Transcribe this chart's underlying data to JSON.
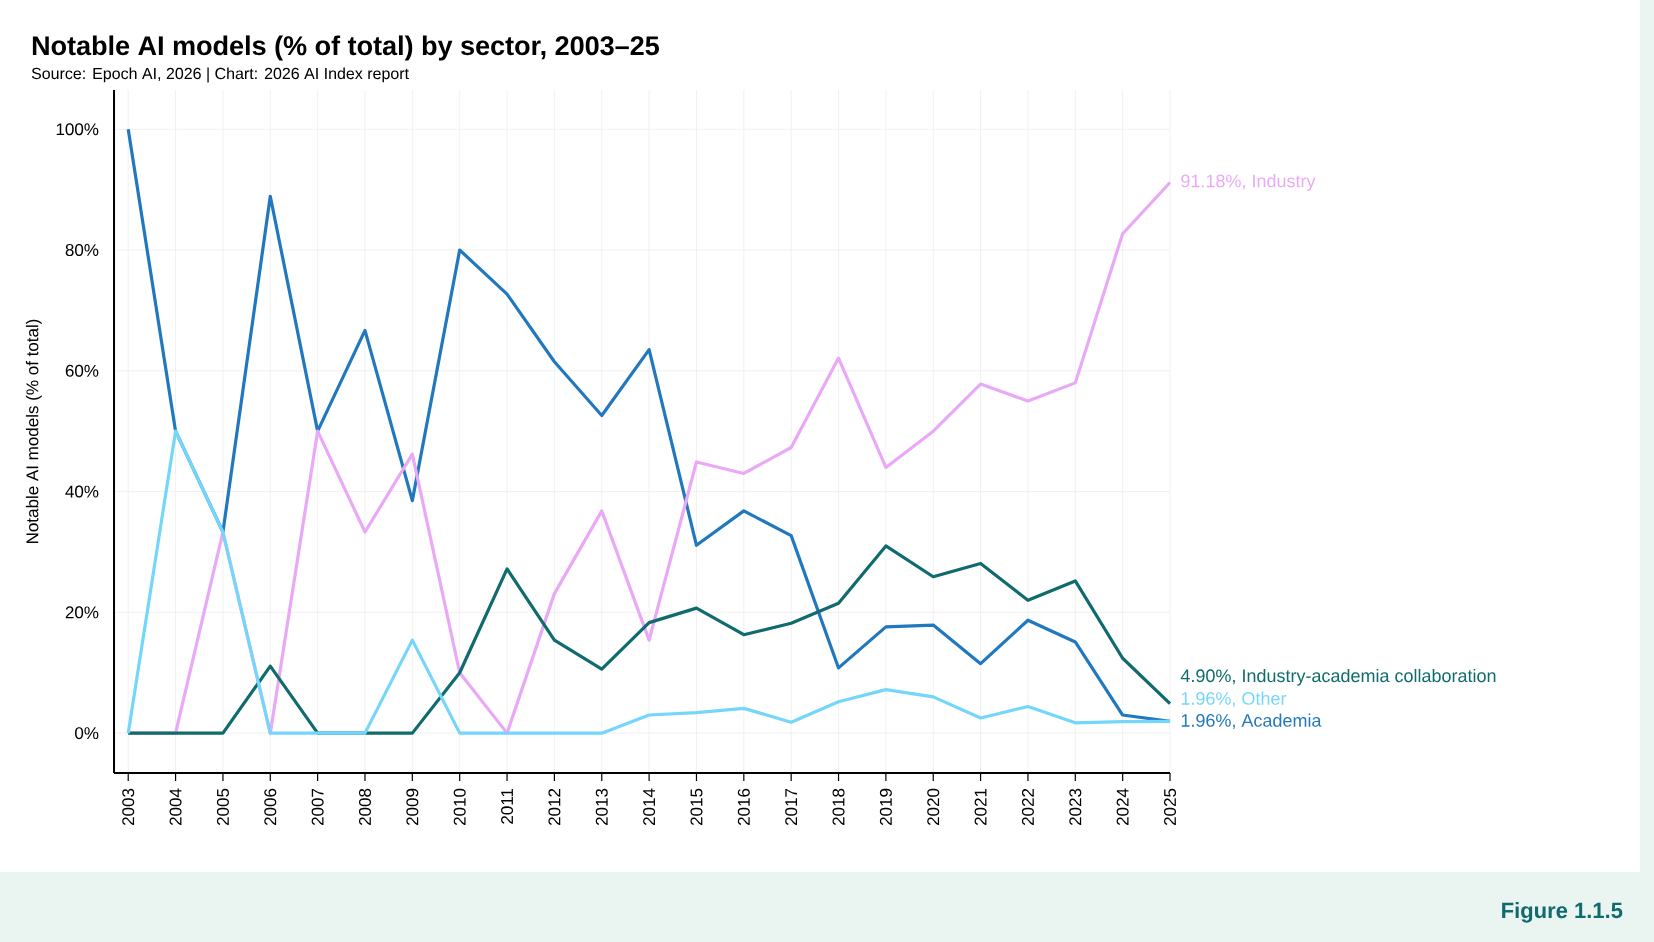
{
  "chart_data": {
    "type": "line",
    "title": "Notable AI models (% of total) by sector, 2003–25",
    "subtitle": "Source: Epoch AI, 2026 | Chart: 2026 AI Index report",
    "ylabel": "Notable AI models (% of total)",
    "x": [
      2003,
      2004,
      2005,
      2006,
      2007,
      2008,
      2009,
      2010,
      2011,
      2012,
      2013,
      2014,
      2015,
      2016,
      2017,
      2018,
      2019,
      2020,
      2021,
      2022,
      2023,
      2024,
      2025
    ],
    "series": [
      {
        "name": "Academia",
        "color": "#2178be",
        "values": [
          100,
          50,
          33.3,
          88.9,
          50,
          66.7,
          38.5,
          80,
          72.7,
          61.5,
          52.6,
          63.5,
          31.1,
          36.8,
          32.7,
          10.8,
          17.6,
          17.9,
          11.5,
          18.7,
          15.1,
          3.0,
          1.96
        ],
        "value_labels": [
          null,
          null,
          null,
          null,
          null,
          null,
          null,
          null,
          null,
          null,
          null,
          null,
          null,
          null,
          null,
          null,
          null,
          null,
          null,
          null,
          null,
          null,
          "1.96%,"
        ]
      },
      {
        "name": "Industry",
        "color": "#e9a9f7",
        "values": [
          0,
          0,
          33.3,
          0,
          50,
          33.3,
          46.2,
          10.0,
          0,
          23.1,
          36.8,
          15.4,
          44.9,
          43.0,
          47.3,
          62.1,
          44.0,
          50.0,
          57.8,
          55.0,
          58.0,
          82.7,
          91.18
        ],
        "value_labels": [
          null,
          null,
          null,
          null,
          null,
          null,
          null,
          null,
          null,
          null,
          null,
          null,
          null,
          null,
          null,
          null,
          null,
          null,
          null,
          null,
          null,
          null,
          "91.18%,"
        ]
      },
      {
        "name": "Industry-academia collaboration",
        "color": "#0f6b6d",
        "values": [
          0,
          0,
          0,
          11.1,
          0,
          0,
          0,
          10.0,
          27.2,
          15.4,
          10.6,
          18.3,
          20.7,
          16.3,
          18.2,
          21.5,
          31.0,
          25.9,
          28.1,
          22.0,
          25.2,
          12.4,
          4.9
        ],
        "value_labels": [
          null,
          null,
          null,
          null,
          null,
          null,
          null,
          null,
          null,
          null,
          null,
          null,
          null,
          null,
          null,
          null,
          null,
          null,
          null,
          null,
          null,
          null,
          "4.90%,"
        ]
      },
      {
        "name": "Other",
        "color": "#74d6fa",
        "values": [
          0,
          50,
          33.3,
          0,
          0,
          0,
          15.4,
          0,
          0,
          0,
          0,
          3.0,
          3.4,
          4.1,
          1.8,
          5.2,
          7.2,
          6.0,
          2.5,
          4.4,
          1.7,
          1.9,
          1.96
        ],
        "value_labels": [
          null,
          null,
          null,
          null,
          null,
          null,
          null,
          null,
          null,
          null,
          null,
          null,
          null,
          null,
          null,
          null,
          null,
          null,
          null,
          null,
          null,
          null,
          "1.96%,"
        ]
      }
    ],
    "xlim": [
      2002.7,
      2025
    ],
    "ylim": [
      -6.6,
      106.5
    ],
    "xticks": [
      2003,
      2004,
      2005,
      2006,
      2007,
      2008,
      2009,
      2010,
      2011,
      2012,
      2013,
      2014,
      2015,
      2016,
      2017,
      2018,
      2019,
      2020,
      2021,
      2022,
      2023,
      2024,
      2025
    ],
    "yticks": [
      {
        "value": 0,
        "label": "0%"
      },
      {
        "value": 20,
        "label": "20%"
      },
      {
        "value": 40,
        "label": "40%"
      },
      {
        "value": 60,
        "label": "60%"
      },
      {
        "value": 80,
        "label": "80%"
      },
      {
        "value": 100,
        "label": "100%"
      }
    ],
    "grid": true,
    "annotations": [
      "Figure 1.1.5"
    ]
  }
}
